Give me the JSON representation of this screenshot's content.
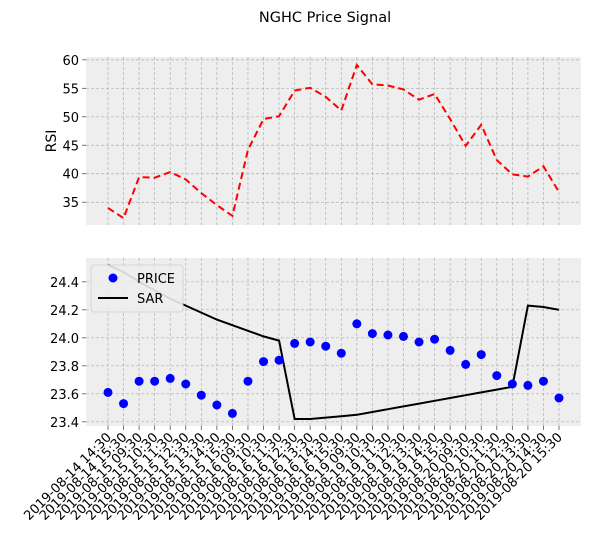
{
  "chart_data": {
    "title": "NGHC Price Signal",
    "x_labels": [
      "2019-08-14 14:30",
      "2019-08-14 15:30",
      "2019-08-15 09:30",
      "2019-08-15 10:30",
      "2019-08-15 11:30",
      "2019-08-15 12:30",
      "2019-08-15 13:30",
      "2019-08-15 14:30",
      "2019-08-15 15:30",
      "2019-08-16 09:30",
      "2019-08-16 10:30",
      "2019-08-16 11:30",
      "2019-08-16 12:30",
      "2019-08-16 13:30",
      "2019-08-16 14:30",
      "2019-08-16 15:30",
      "2019-08-19 09:30",
      "2019-08-19 10:30",
      "2019-08-19 11:30",
      "2019-08-19 12:30",
      "2019-08-19 13:30",
      "2019-08-19 14:30",
      "2019-08-19 15:30",
      "2019-08-20 09:30",
      "2019-08-20 10:30",
      "2019-08-20 11:30",
      "2019-08-20 12:30",
      "2019-08-20 13:30",
      "2019-08-20 14:30",
      "2019-08-20 15:30"
    ],
    "charts": [
      {
        "type": "line",
        "ylabel": "RSI",
        "ylim": [
          31,
          60.5
        ],
        "yticks": [
          35,
          40,
          45,
          50,
          55,
          60
        ],
        "grid": true,
        "series": [
          {
            "values": [
              34.0,
              32.2,
              39.4,
              39.3,
              40.3,
              39.0,
              36.6,
              34.5,
              32.6,
              44.2,
              49.6,
              50.1,
              54.6,
              55.1,
              53.5,
              51.1,
              59.1,
              55.7,
              55.5,
              54.8,
              53.0,
              54.0,
              49.6,
              44.9,
              48.6,
              42.4,
              39.9,
              39.5,
              41.3,
              36.8
            ],
            "color": "#ff0000",
            "style": "dashed"
          }
        ]
      },
      {
        "type": "scatter+line",
        "ylim": [
          23.37,
          24.57
        ],
        "yticks": [
          23.4,
          23.6,
          23.8,
          24.0,
          24.2,
          24.4
        ],
        "grid": true,
        "legend_position": "top-left",
        "series": [
          {
            "name": "PRICE",
            "type": "scatter",
            "color": "#0000ff",
            "values": [
              23.61,
              23.53,
              23.69,
              23.69,
              23.71,
              23.67,
              23.59,
              23.52,
              23.46,
              23.69,
              23.83,
              23.84,
              23.96,
              23.97,
              23.94,
              23.89,
              24.1,
              24.03,
              24.02,
              24.01,
              23.97,
              23.99,
              23.91,
              23.81,
              23.88,
              23.73,
              23.67,
              23.66,
              23.69,
              23.57
            ]
          },
          {
            "name": "SAR",
            "type": "line",
            "color": "#000000",
            "values": [
              24.52,
              24.47,
              24.4,
              24.34,
              24.28,
              24.23,
              24.18,
              24.13,
              24.09,
              24.05,
              24.01,
              23.98,
              23.42,
              23.42,
              23.43,
              23.44,
              23.45,
              23.47,
              23.49,
              23.51,
              23.53,
              23.55,
              23.57,
              23.59,
              23.61,
              23.63,
              23.65,
              24.23,
              24.22,
              24.2
            ]
          }
        ]
      }
    ]
  }
}
